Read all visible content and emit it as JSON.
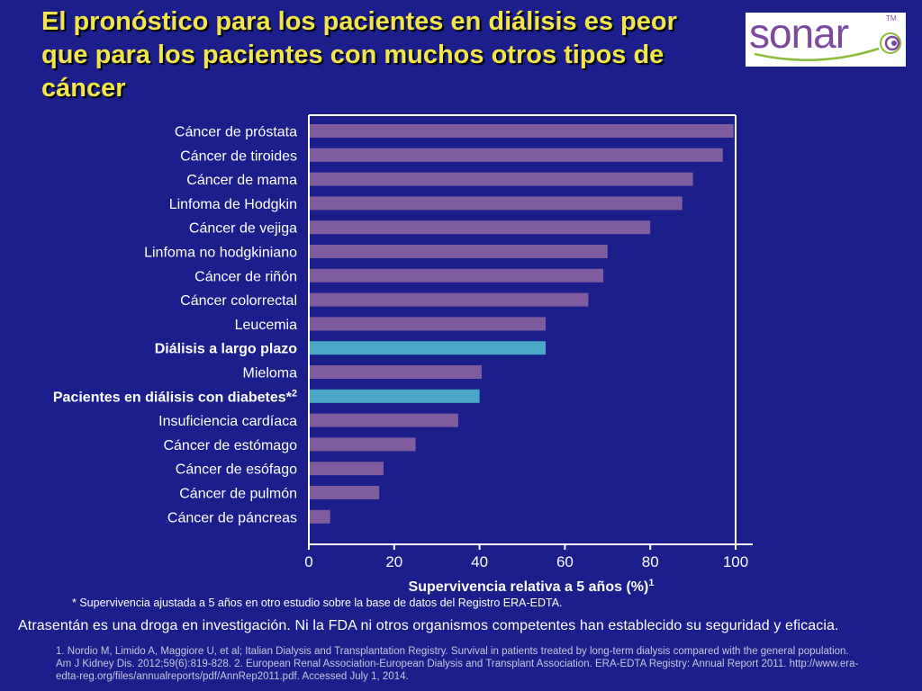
{
  "slide": {
    "title": "El pronóstico para los pacientes en diálisis es peor que para los pacientes con muchos otros tipos de cáncer",
    "logo_text": "sonar",
    "logo_tm": "TM",
    "footnote": "* Supervivencia ajustada a 5 años en otro estudio sobre la base de datos del Registro ERA-EDTA.",
    "disclaimer": "Atrasentán es una droga en investigación. Ni la FDA ni otros organismos competentes han establecido su seguridad y eficacia.",
    "references": "1. Nordio M, Limido A, Maggiore U, et al; Italian Dialysis and Transplantation Registry. Survival in patients treated by long-term dialysis compared with the general population. Am J Kidney Dis. 2012;59(6):819-828. 2. European Renal Association-European Dialysis and Transplant Association. ERA-EDTA Registry: Annual Report 2011. http://www.era-edta-reg.org/files/annualreports/pdf/AnnRep2011.pdf. Accessed July 1, 2014."
  },
  "colors": {
    "background": "#1c1e8c",
    "title": "#f2e64b",
    "bar_default": "#7e5c9e",
    "bar_highlight": "#4aa7c6",
    "axis": "#ffffff",
    "logo_purple": "#7b4a9e",
    "logo_green": "#8dbb3a"
  },
  "chart_data": {
    "type": "bar",
    "orientation": "horizontal",
    "categories": [
      "Cáncer de próstata",
      "Cáncer de tiroides",
      "Cáncer de mama",
      "Linfoma de Hodgkin",
      "Cáncer de vejiga",
      "Linfoma no hodgkiniano",
      "Cáncer de riñón",
      "Cáncer colorrectal",
      "Leucemia",
      "Diálisis a largo plazo",
      "Mieloma",
      "Pacientes en diálisis con diabetes*",
      "Insuficiencia cardíaca",
      "Cáncer de estómago",
      "Cáncer de esófago",
      "Cáncer de pulmón",
      "Cáncer de páncreas"
    ],
    "category_superscripts": [
      "",
      "",
      "",
      "",
      "",
      "",
      "",
      "",
      "",
      "",
      "",
      "2",
      "",
      "",
      "",
      "",
      ""
    ],
    "values": [
      99.5,
      97,
      90,
      87.5,
      80,
      70,
      69,
      65.5,
      55.5,
      55.5,
      40.5,
      40,
      35,
      25,
      17.5,
      16.5,
      5
    ],
    "highlighted": [
      false,
      false,
      false,
      false,
      false,
      false,
      false,
      false,
      false,
      true,
      false,
      true,
      false,
      false,
      false,
      false,
      false
    ],
    "xlabel": "Supervivencia relativa a 5 años (%)",
    "xlabel_superscript": "1",
    "xlim": [
      0,
      100
    ],
    "xticks": [
      0,
      20,
      40,
      60,
      80,
      100
    ],
    "grid": false,
    "legend": "none"
  }
}
